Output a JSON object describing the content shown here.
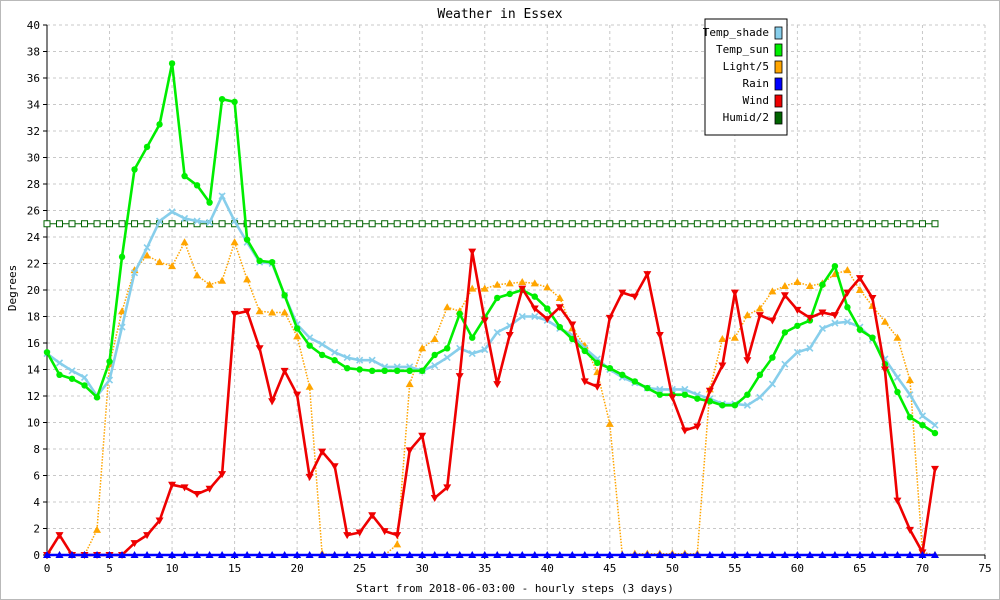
{
  "chart_data": {
    "type": "line",
    "title": "Weather in Essex",
    "xlabel": "Start from 2018-06-03:00 - hourly steps (3 days)",
    "ylabel": "Degrees",
    "xlim": [
      0,
      75
    ],
    "ylim": [
      0,
      40
    ],
    "x_ticks": [
      0,
      5,
      10,
      15,
      20,
      25,
      30,
      35,
      40,
      45,
      50,
      55,
      60,
      65,
      70,
      75
    ],
    "y_ticks": [
      0,
      2,
      4,
      6,
      8,
      10,
      12,
      14,
      16,
      18,
      20,
      22,
      24,
      26,
      28,
      30,
      32,
      34,
      36,
      38,
      40
    ],
    "grid": true,
    "legend_position": "top-right",
    "series": [
      {
        "name": "Temp_shade",
        "color": "#87ceeb",
        "marker": "x",
        "values": [
          15.2,
          14.5,
          13.9,
          13.4,
          12.0,
          13.2,
          17.2,
          21.3,
          23.2,
          25.2,
          25.9,
          25.4,
          25.2,
          25.1,
          27.1,
          25.2,
          23.6,
          22.1,
          22.0,
          19.6,
          17.4,
          16.4,
          15.9,
          15.3,
          14.9,
          14.7,
          14.7,
          14.2,
          14.2,
          14.2,
          13.9,
          14.3,
          14.9,
          15.6,
          15.2,
          15.5,
          16.8,
          17.3,
          18.0,
          18.0,
          17.7,
          17.1,
          16.6,
          15.6,
          14.8,
          14.0,
          13.4,
          13.0,
          12.6,
          12.5,
          12.5,
          12.5,
          12.1,
          11.8,
          11.4,
          11.4,
          11.3,
          11.9,
          12.9,
          14.4,
          15.3,
          15.6,
          17.1,
          17.5,
          17.6,
          17.2,
          16.3,
          14.8,
          13.4,
          12.1,
          10.5,
          9.8
        ]
      },
      {
        "name": "Temp_sun",
        "color": "#00ee00",
        "marker": "o",
        "values": [
          15.3,
          13.6,
          13.3,
          12.8,
          11.9,
          14.6,
          22.5,
          29.1,
          30.8,
          32.5,
          37.1,
          28.6,
          27.9,
          26.6,
          34.4,
          34.2,
          23.8,
          22.2,
          22.1,
          19.6,
          17.1,
          15.8,
          15.1,
          14.7,
          14.1,
          14.0,
          13.9,
          13.9,
          13.9,
          13.9,
          13.9,
          15.1,
          15.6,
          18.2,
          16.4,
          17.9,
          19.4,
          19.7,
          20.0,
          19.5,
          18.6,
          17.2,
          16.3,
          15.4,
          14.5,
          14.1,
          13.6,
          13.1,
          12.6,
          12.1,
          12.1,
          12.1,
          11.8,
          11.6,
          11.3,
          11.3,
          12.1,
          13.6,
          14.9,
          16.8,
          17.3,
          17.7,
          20.4,
          21.8,
          18.7,
          17.0,
          16.4,
          14.4,
          12.3,
          10.4,
          9.8,
          9.2
        ]
      },
      {
        "name": "Light/5",
        "color": "#ffa500",
        "marker": "triangle-up",
        "values": [
          0,
          0,
          0,
          0,
          1.9,
          14.4,
          18.4,
          21.5,
          22.6,
          22.1,
          21.8,
          23.6,
          21.1,
          20.4,
          20.7,
          23.6,
          20.8,
          18.4,
          18.3,
          18.3,
          16.5,
          12.7,
          0.1,
          0,
          0,
          0,
          0,
          0,
          0.8,
          12.9,
          15.6,
          16.3,
          18.7,
          18.4,
          20.1,
          20.1,
          20.4,
          20.5,
          20.6,
          20.5,
          20.2,
          19.4,
          17.1,
          15.8,
          13.8,
          9.9,
          0,
          0.1,
          0.1,
          0.1,
          0.1,
          0.1,
          0.1,
          12.5,
          16.3,
          16.4,
          18.1,
          18.6,
          19.9,
          20.3,
          20.6,
          20.3,
          20.5,
          21.2,
          21.5,
          20.0,
          18.8,
          17.6,
          16.4,
          13.2,
          0.2,
          0
        ]
      },
      {
        "name": "Rain",
        "color": "#0000ff",
        "marker": "triangle-up",
        "values": [
          0,
          0,
          0,
          0,
          0,
          0,
          0,
          0,
          0,
          0,
          0,
          0,
          0,
          0,
          0,
          0,
          0,
          0,
          0,
          0,
          0,
          0,
          0,
          0,
          0,
          0,
          0,
          0,
          0,
          0,
          0,
          0,
          0,
          0,
          0,
          0,
          0,
          0,
          0,
          0,
          0,
          0,
          0,
          0,
          0,
          0,
          0,
          0,
          0,
          0,
          0,
          0,
          0,
          0,
          0,
          0,
          0,
          0,
          0,
          0,
          0,
          0,
          0,
          0,
          0,
          0,
          0,
          0,
          0,
          0,
          0,
          0
        ]
      },
      {
        "name": "Wind",
        "color": "#ee0000",
        "marker": "triangle-down",
        "values": [
          0,
          1.5,
          0,
          0,
          0,
          0,
          0,
          0.9,
          1.5,
          2.6,
          5.3,
          5.1,
          4.6,
          5.0,
          6.1,
          18.2,
          18.4,
          15.6,
          11.6,
          13.9,
          12.1,
          5.9,
          7.8,
          6.7,
          1.5,
          1.7,
          3.0,
          1.8,
          1.5,
          7.9,
          9.0,
          4.3,
          5.1,
          13.5,
          22.9,
          17.7,
          12.9,
          16.6,
          20.1,
          18.6,
          17.8,
          18.7,
          17.4,
          13.1,
          12.7,
          17.9,
          19.8,
          19.5,
          21.2,
          16.6,
          11.9,
          9.4,
          9.7,
          12.4,
          14.3,
          19.8,
          14.7,
          18.1,
          17.7,
          19.6,
          18.5,
          17.9,
          18.3,
          18.1,
          19.8,
          20.9,
          19.4,
          14.0,
          4.1,
          1.9,
          0.2,
          6.5
        ]
      },
      {
        "name": "Humid/2",
        "color": "#006400",
        "marker": "square",
        "values": [
          25,
          25,
          25,
          25,
          25,
          25,
          25,
          25,
          25,
          25,
          25,
          25,
          25,
          25,
          25,
          25,
          25,
          25,
          25,
          25,
          25,
          25,
          25,
          25,
          25,
          25,
          25,
          25,
          25,
          25,
          25,
          25,
          25,
          25,
          25,
          25,
          25,
          25,
          25,
          25,
          25,
          25,
          25,
          25,
          25,
          25,
          25,
          25,
          25,
          25,
          25,
          25,
          25,
          25,
          25,
          25,
          25,
          25,
          25,
          25,
          25,
          25,
          25,
          25,
          25,
          25,
          25,
          25,
          25,
          25,
          25,
          25
        ]
      }
    ]
  }
}
